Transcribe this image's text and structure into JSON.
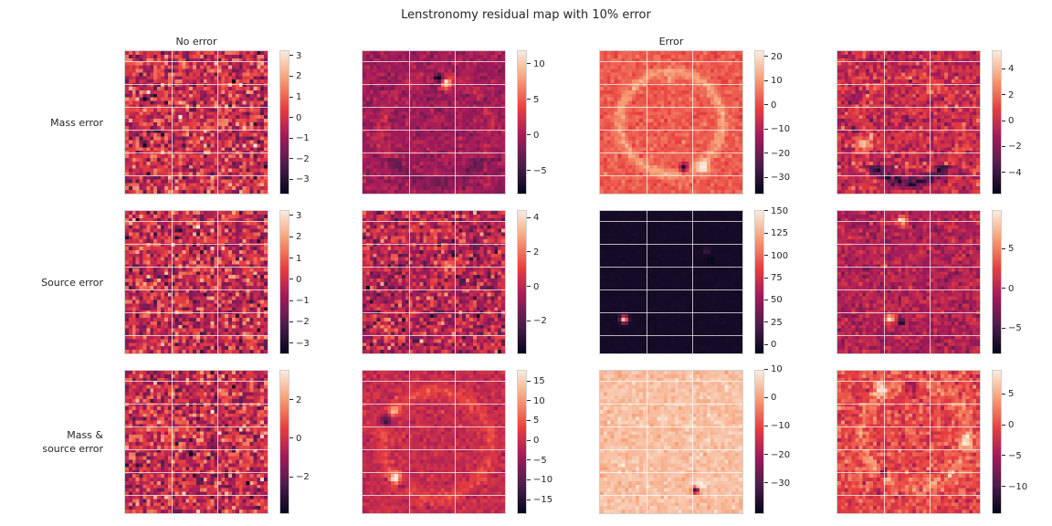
{
  "chart_data": {
    "type": "heatmap",
    "title": "Lenstronomy residual map with 10% error",
    "column_titles": [
      "No error",
      "",
      "Error",
      ""
    ],
    "row_labels": [
      "Mass error",
      "Source error",
      "Mass &\nsource error"
    ],
    "colormap": "rocket",
    "colormap_stops": [
      "#03051a",
      "#4c1d4b",
      "#a11a5b",
      "#e83f3f",
      "#f69c73",
      "#faebdd"
    ],
    "panels": [
      {
        "row": 0,
        "col": 0,
        "pattern": "noise",
        "vmin": -3.6,
        "vmax": 3.3,
        "ticks": [
          -3,
          -2,
          -1,
          0,
          1,
          2,
          3
        ]
      },
      {
        "row": 0,
        "col": 1,
        "pattern": "mass_ring_dipole",
        "vmin": -8,
        "vmax": 12,
        "ticks": [
          -5,
          0,
          5,
          10
        ]
      },
      {
        "row": 0,
        "col": 2,
        "pattern": "mass_ring_bright",
        "vmin": -36,
        "vmax": 23,
        "ticks": [
          -30,
          -20,
          -10,
          0,
          10,
          20
        ]
      },
      {
        "row": 0,
        "col": 3,
        "pattern": "mass_ring_arcs",
        "vmin": -5.5,
        "vmax": 5.5,
        "ticks": [
          -4,
          -2,
          0,
          2,
          4
        ]
      },
      {
        "row": 1,
        "col": 0,
        "pattern": "noise",
        "vmin": -3.4,
        "vmax": 3.3,
        "ticks": [
          -3,
          -2,
          -1,
          0,
          1,
          2,
          3
        ]
      },
      {
        "row": 1,
        "col": 1,
        "pattern": "source_noise",
        "vmin": -3.8,
        "vmax": 4.5,
        "ticks": [
          -2,
          0,
          2,
          4
        ]
      },
      {
        "row": 1,
        "col": 2,
        "pattern": "source_point",
        "vmin": -8,
        "vmax": 152,
        "ticks": [
          0,
          25,
          50,
          75,
          100,
          125,
          150
        ]
      },
      {
        "row": 1,
        "col": 3,
        "pattern": "source_spots",
        "vmin": -8,
        "vmax": 10,
        "ticks": [
          -5,
          0,
          5
        ]
      },
      {
        "row": 2,
        "col": 0,
        "pattern": "noise",
        "vmin": -3.8,
        "vmax": 3.6,
        "ticks": [
          -2,
          0,
          2
        ]
      },
      {
        "row": 2,
        "col": 1,
        "pattern": "both_ring",
        "vmin": -18,
        "vmax": 18,
        "ticks": [
          -15,
          -10,
          -5,
          0,
          5,
          10,
          15
        ]
      },
      {
        "row": 2,
        "col": 2,
        "pattern": "both_point_light",
        "vmin": -40,
        "vmax": 10,
        "ticks": [
          -30,
          -20,
          -10,
          0,
          10
        ]
      },
      {
        "row": 2,
        "col": 3,
        "pattern": "both_ring_arcs",
        "vmin": -14,
        "vmax": 9,
        "ticks": [
          -10,
          -5,
          0,
          5
        ]
      }
    ]
  }
}
